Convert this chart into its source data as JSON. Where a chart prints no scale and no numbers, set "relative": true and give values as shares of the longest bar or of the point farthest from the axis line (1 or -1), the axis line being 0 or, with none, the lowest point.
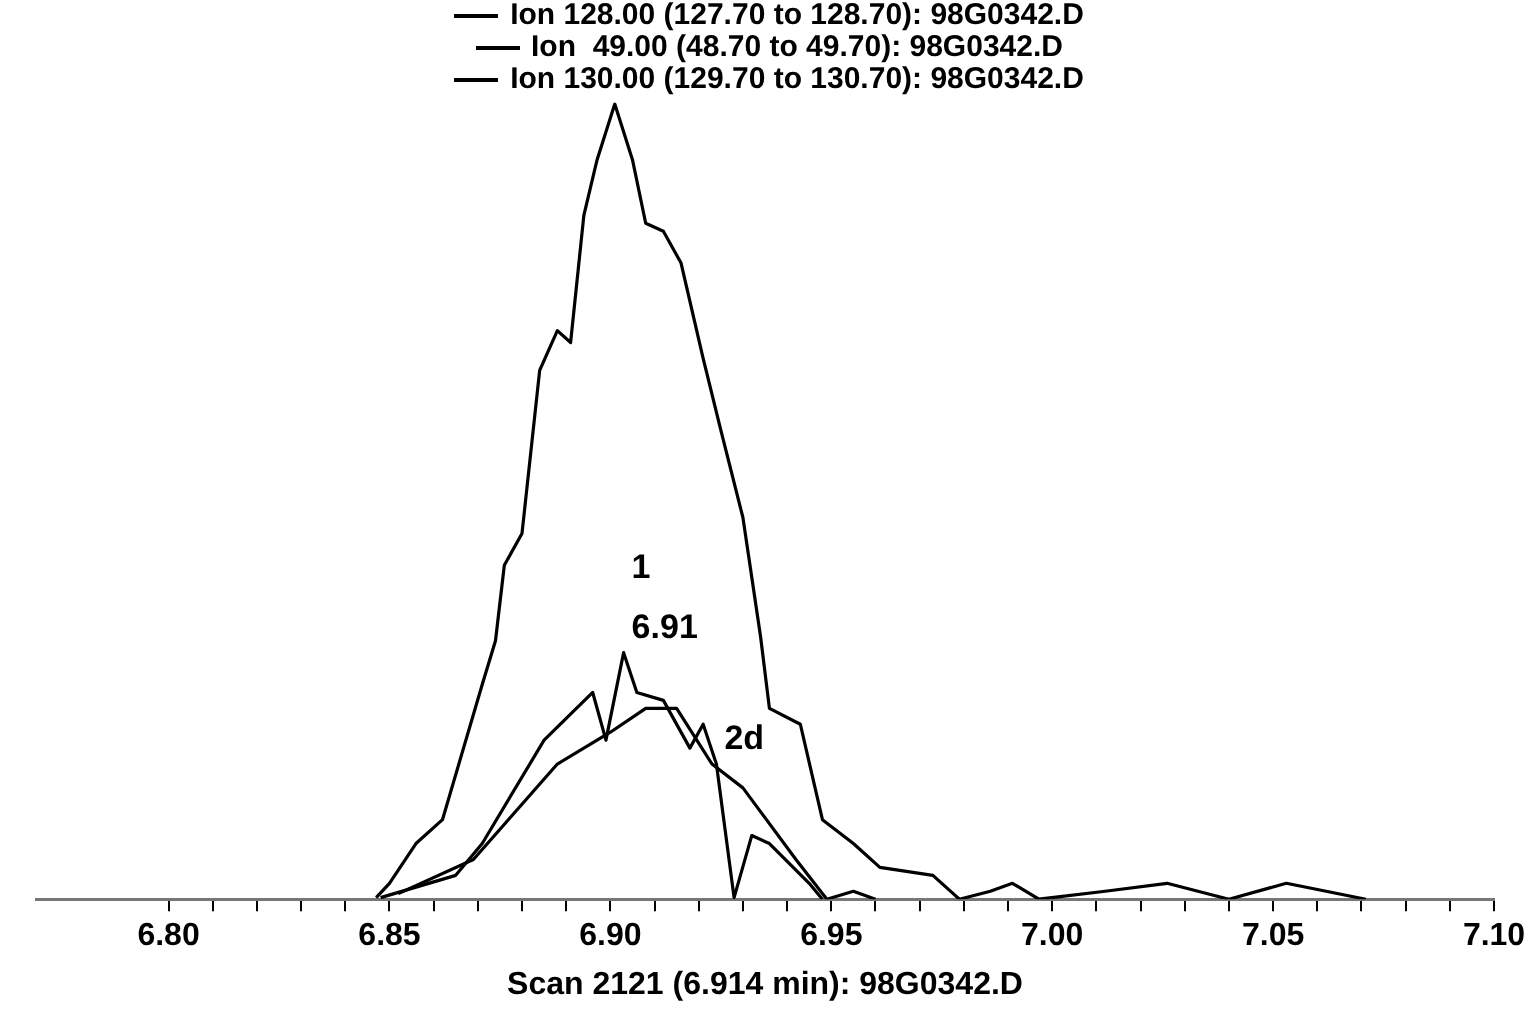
{
  "chart_data": {
    "type": "line",
    "relative": true,
    "xlabel": "Scan 2121 (6.914 min): 98G0342.D",
    "xlim": [
      6.77,
      7.1
    ],
    "xticks": [
      {
        "value": 6.8,
        "label": "6.80"
      },
      {
        "value": 6.81,
        "label": null
      },
      {
        "value": 6.82,
        "label": null
      },
      {
        "value": 6.83,
        "label": null
      },
      {
        "value": 6.84,
        "label": null
      },
      {
        "value": 6.85,
        "label": "6.85"
      },
      {
        "value": 6.86,
        "label": null
      },
      {
        "value": 6.87,
        "label": null
      },
      {
        "value": 6.88,
        "label": null
      },
      {
        "value": 6.89,
        "label": null
      },
      {
        "value": 6.9,
        "label": "6.90"
      },
      {
        "value": 6.91,
        "label": null
      },
      {
        "value": 6.92,
        "label": null
      },
      {
        "value": 6.93,
        "label": null
      },
      {
        "value": 6.94,
        "label": null
      },
      {
        "value": 6.95,
        "label": "6.95"
      },
      {
        "value": 6.96,
        "label": null
      },
      {
        "value": 6.97,
        "label": null
      },
      {
        "value": 6.98,
        "label": null
      },
      {
        "value": 6.99,
        "label": null
      },
      {
        "value": 7.0,
        "label": "7.00"
      },
      {
        "value": 7.01,
        "label": null
      },
      {
        "value": 7.02,
        "label": null
      },
      {
        "value": 7.03,
        "label": null
      },
      {
        "value": 7.04,
        "label": null
      },
      {
        "value": 7.05,
        "label": "7.05"
      },
      {
        "value": 7.06,
        "label": null
      },
      {
        "value": 7.07,
        "label": null
      },
      {
        "value": 7.08,
        "label": null
      },
      {
        "value": 7.09,
        "label": null
      },
      {
        "value": 7.1,
        "label": "7.10"
      }
    ],
    "grid": false,
    "legend": "top",
    "marker": "none",
    "line_style": "solid",
    "series": [
      {
        "name": "Ion 128.00 (127.70 to 128.70): 98G0342.D",
        "color": "#000000",
        "x": [
          6.847,
          6.85,
          6.856,
          6.862,
          6.871,
          6.874,
          6.876,
          6.88,
          6.884,
          6.888,
          6.891,
          6.894,
          6.897,
          6.901,
          6.905,
          6.908,
          6.912,
          6.916,
          6.921,
          6.925,
          6.93,
          6.934,
          6.936,
          6.943,
          6.948,
          6.955,
          6.961,
          6.973,
          6.979,
          6.986,
          6.991,
          6.997,
          7.012,
          7.026,
          7.04,
          7.053,
          7.071
        ],
        "values": [
          0.002,
          0.02,
          0.07,
          0.1,
          0.27,
          0.325,
          0.42,
          0.46,
          0.665,
          0.715,
          0.7,
          0.86,
          0.93,
          1.0,
          0.93,
          0.85,
          0.84,
          0.8,
          0.68,
          0.59,
          0.48,
          0.33,
          0.24,
          0.22,
          0.1,
          0.07,
          0.04,
          0.03,
          0.0,
          0.01,
          0.02,
          0.0,
          0.01,
          0.02,
          0.0,
          0.02,
          0.0
        ]
      },
      {
        "name": "Ion  49.00 (48.70 to 49.70): 98G0342.D",
        "color": "#000000",
        "x": [
          6.848,
          6.865,
          6.871,
          6.885,
          6.896,
          6.899,
          6.903,
          6.906,
          6.912,
          6.918,
          6.921,
          6.924,
          6.928,
          6.932,
          6.936,
          6.945,
          6.948
        ],
        "values": [
          0.002,
          0.03,
          0.07,
          0.2,
          0.26,
          0.2,
          0.31,
          0.26,
          0.25,
          0.19,
          0.22,
          0.17,
          0.002,
          0.08,
          0.07,
          0.02,
          0.0
        ]
      },
      {
        "name": "Ion 130.00 (129.70 to 130.70): 98G0342.D",
        "color": "#000000",
        "x": [
          6.852,
          6.869,
          6.888,
          6.9,
          6.908,
          6.915,
          6.923,
          6.93,
          6.942,
          6.949,
          6.955,
          6.96
        ],
        "values": [
          0.007,
          0.05,
          0.17,
          0.21,
          0.24,
          0.24,
          0.17,
          0.14,
          0.05,
          0.0,
          0.01,
          0.0
        ]
      }
    ],
    "annotations": [
      "1",
      {
        "text": "6.91",
        "x": 6.903,
        "y": 0.31
      },
      {
        "text": "2d",
        "x": 6.924,
        "y": 0.17
      }
    ]
  }
}
